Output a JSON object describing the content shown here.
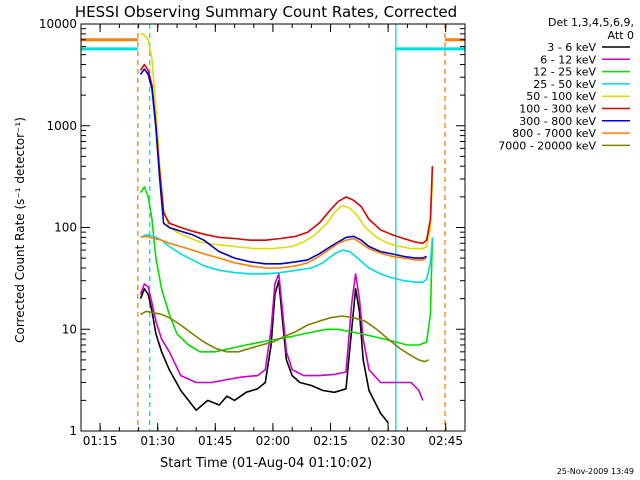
{
  "chart_data": {
    "type": "line",
    "title": "HESSI Observing Summary Count Rates, Corrected",
    "xlabel": "Start Time (01-Aug-04 01:10:02)",
    "ylabel": "Corrected Count Rate (s⁻¹ detector⁻¹)",
    "y_scale": "log",
    "ylim": [
      1,
      10000
    ],
    "xlim_minutes": [
      0,
      100
    ],
    "x_ticks": [
      {
        "label": "01:15",
        "minutes": 4.97
      },
      {
        "label": "01:30",
        "minutes": 19.97
      },
      {
        "label": "01:45",
        "minutes": 34.97
      },
      {
        "label": "02:00",
        "minutes": 49.97
      },
      {
        "label": "02:15",
        "minutes": 64.97
      },
      {
        "label": "02:30",
        "minutes": 79.97
      },
      {
        "label": "02:45",
        "minutes": 94.97
      }
    ],
    "y_ticks": [
      {
        "label": "1",
        "value": 1
      },
      {
        "label": "10",
        "value": 10
      },
      {
        "label": "100",
        "value": 100
      },
      {
        "label": "1000",
        "value": 1000
      },
      {
        "label": "10000",
        "value": 10000
      }
    ],
    "legend_header": [
      "Det 1,3,4,5,6,9,",
      "Att 0"
    ],
    "legend_position": "right",
    "timestamp": "25-Nov-2009 13:49",
    "series": [
      {
        "name": "3 - 6 keV",
        "color": "#000000",
        "points": [
          [
            15.5,
            20
          ],
          [
            16.5,
            25
          ],
          [
            17.5,
            22
          ],
          [
            18.5,
            15
          ],
          [
            19.5,
            9
          ],
          [
            21,
            6
          ],
          [
            23,
            4
          ],
          [
            26,
            2.5
          ],
          [
            28,
            2
          ],
          [
            30,
            1.6
          ],
          [
            33,
            2
          ],
          [
            36,
            1.8
          ],
          [
            38,
            2.2
          ],
          [
            40,
            2
          ],
          [
            43,
            2.4
          ],
          [
            46,
            2.6
          ],
          [
            48,
            3
          ],
          [
            49.5,
            7
          ],
          [
            50.5,
            22
          ],
          [
            51.5,
            30
          ],
          [
            52.5,
            12
          ],
          [
            53.5,
            5
          ],
          [
            55,
            3.5
          ],
          [
            57,
            3
          ],
          [
            60,
            2.8
          ],
          [
            63,
            2.5
          ],
          [
            66,
            2.4
          ],
          [
            69,
            2.6
          ],
          [
            70.5,
            10
          ],
          [
            71.5,
            25
          ],
          [
            72.5,
            15
          ],
          [
            73.5,
            5
          ],
          [
            75,
            2.5
          ],
          [
            78,
            1.5
          ],
          [
            80,
            1.2
          ]
        ]
      },
      {
        "name": "6 - 12 keV",
        "color": "#cc00cc",
        "points": [
          [
            15.5,
            22
          ],
          [
            16.5,
            28
          ],
          [
            17.5,
            26
          ],
          [
            18.5,
            18
          ],
          [
            19.5,
            12
          ],
          [
            21,
            8
          ],
          [
            23,
            6
          ],
          [
            26,
            3.5
          ],
          [
            30,
            3
          ],
          [
            34,
            3
          ],
          [
            38,
            3.2
          ],
          [
            42,
            3.4
          ],
          [
            46,
            3.5
          ],
          [
            48,
            4
          ],
          [
            49.5,
            10
          ],
          [
            50.5,
            28
          ],
          [
            51.5,
            35
          ],
          [
            52.5,
            15
          ],
          [
            53.5,
            6
          ],
          [
            55,
            4
          ],
          [
            58,
            3.5
          ],
          [
            62,
            3.5
          ],
          [
            66,
            3.6
          ],
          [
            69,
            3.8
          ],
          [
            70.5,
            18
          ],
          [
            71.5,
            35
          ],
          [
            72.5,
            20
          ],
          [
            73.5,
            8
          ],
          [
            75,
            4
          ],
          [
            78,
            3
          ],
          [
            82,
            3
          ],
          [
            86,
            3
          ],
          [
            88,
            2.5
          ],
          [
            89,
            2
          ]
        ]
      },
      {
        "name": "12 - 25 keV",
        "color": "#00dd00",
        "points": [
          [
            15.5,
            220
          ],
          [
            16.5,
            250
          ],
          [
            17.5,
            200
          ],
          [
            18.5,
            120
          ],
          [
            19.5,
            50
          ],
          [
            21,
            25
          ],
          [
            23,
            14
          ],
          [
            25,
            9
          ],
          [
            28,
            7
          ],
          [
            31,
            6
          ],
          [
            35,
            6
          ],
          [
            39,
            6.5
          ],
          [
            43,
            7
          ],
          [
            47,
            7.5
          ],
          [
            51,
            8
          ],
          [
            55,
            8.5
          ],
          [
            58,
            9
          ],
          [
            61,
            9.5
          ],
          [
            64,
            10
          ],
          [
            67,
            10
          ],
          [
            70,
            9.5
          ],
          [
            73,
            9
          ],
          [
            76,
            8.5
          ],
          [
            79,
            8
          ],
          [
            82,
            7.5
          ],
          [
            85,
            7
          ],
          [
            88,
            7
          ],
          [
            90,
            7.5
          ],
          [
            91,
            14
          ],
          [
            91.5,
            80
          ]
        ]
      },
      {
        "name": "25 - 50 keV",
        "color": "#00dddd",
        "points": [
          [
            15.5,
            80
          ],
          [
            17,
            85
          ],
          [
            19,
            82
          ],
          [
            21,
            75
          ],
          [
            23,
            65
          ],
          [
            26,
            55
          ],
          [
            29,
            48
          ],
          [
            32,
            42
          ],
          [
            36,
            38
          ],
          [
            40,
            36
          ],
          [
            44,
            35
          ],
          [
            48,
            35
          ],
          [
            52,
            36
          ],
          [
            56,
            38
          ],
          [
            60,
            40
          ],
          [
            63,
            45
          ],
          [
            66,
            55
          ],
          [
            68,
            60
          ],
          [
            70,
            58
          ],
          [
            72,
            50
          ],
          [
            75,
            40
          ],
          [
            78,
            35
          ],
          [
            81,
            32
          ],
          [
            84,
            30
          ],
          [
            87,
            29
          ],
          [
            89,
            29
          ],
          [
            90,
            31
          ],
          [
            91,
            45
          ],
          [
            91.5,
            80
          ]
        ]
      },
      {
        "name": "50 - 100 keV",
        "color": "#dddd00",
        "points": [
          [
            15.5,
            8000
          ],
          [
            16.5,
            7800
          ],
          [
            17.5,
            7000
          ],
          [
            18.5,
            4500
          ],
          [
            19.5,
            1500
          ],
          [
            20.5,
            400
          ],
          [
            21.5,
            150
          ],
          [
            23,
            100
          ],
          [
            25,
            90
          ],
          [
            28,
            80
          ],
          [
            31,
            72
          ],
          [
            35,
            68
          ],
          [
            40,
            65
          ],
          [
            45,
            62
          ],
          [
            50,
            62
          ],
          [
            55,
            65
          ],
          [
            58,
            72
          ],
          [
            61,
            85
          ],
          [
            64,
            110
          ],
          [
            66,
            140
          ],
          [
            68,
            165
          ],
          [
            70,
            155
          ],
          [
            72,
            130
          ],
          [
            74,
            100
          ],
          [
            77,
            80
          ],
          [
            80,
            70
          ],
          [
            83,
            65
          ],
          [
            86,
            62
          ],
          [
            89,
            62
          ],
          [
            90,
            65
          ],
          [
            91,
            100
          ],
          [
            91.5,
            300
          ]
        ]
      },
      {
        "name": "100 - 300 keV",
        "color": "#dd0000",
        "points": [
          [
            15.5,
            3500
          ],
          [
            16.5,
            4000
          ],
          [
            17.5,
            3500
          ],
          [
            18.5,
            2500
          ],
          [
            19.5,
            1000
          ],
          [
            20.5,
            350
          ],
          [
            21.5,
            140
          ],
          [
            23,
            110
          ],
          [
            26,
            100
          ],
          [
            29,
            92
          ],
          [
            32,
            86
          ],
          [
            36,
            80
          ],
          [
            40,
            78
          ],
          [
            44,
            75
          ],
          [
            48,
            75
          ],
          [
            52,
            78
          ],
          [
            56,
            82
          ],
          [
            59,
            90
          ],
          [
            62,
            110
          ],
          [
            65,
            150
          ],
          [
            67,
            180
          ],
          [
            69,
            200
          ],
          [
            71,
            185
          ],
          [
            73,
            160
          ],
          [
            75,
            120
          ],
          [
            78,
            95
          ],
          [
            81,
            85
          ],
          [
            84,
            78
          ],
          [
            87,
            72
          ],
          [
            89,
            70
          ],
          [
            90,
            75
          ],
          [
            91,
            120
          ],
          [
            91.5,
            400
          ]
        ]
      },
      {
        "name": "300 - 800 keV",
        "color": "#0000cc",
        "points": [
          [
            15.5,
            3200
          ],
          [
            16.5,
            3600
          ],
          [
            17.5,
            3200
          ],
          [
            18.5,
            2300
          ],
          [
            19.5,
            950
          ],
          [
            20.5,
            300
          ],
          [
            21.5,
            110
          ],
          [
            23,
            100
          ],
          [
            26,
            92
          ],
          [
            29,
            85
          ],
          [
            32,
            75
          ],
          [
            36,
            58
          ],
          [
            40,
            50
          ],
          [
            44,
            46
          ],
          [
            48,
            44
          ],
          [
            52,
            44
          ],
          [
            56,
            46
          ],
          [
            59,
            48
          ],
          [
            62,
            55
          ],
          [
            65,
            65
          ],
          [
            67,
            72
          ],
          [
            69,
            80
          ],
          [
            71,
            82
          ],
          [
            73,
            75
          ],
          [
            75,
            65
          ],
          [
            78,
            58
          ],
          [
            81,
            55
          ],
          [
            84,
            52
          ],
          [
            87,
            50
          ],
          [
            89,
            50
          ],
          [
            90,
            52
          ]
        ]
      },
      {
        "name": "800 - 7000 keV",
        "color": "#ff8000",
        "points": [
          [
            15.5,
            80
          ],
          [
            17,
            82
          ],
          [
            19,
            78
          ],
          [
            21,
            75
          ],
          [
            23,
            70
          ],
          [
            26,
            65
          ],
          [
            29,
            60
          ],
          [
            32,
            55
          ],
          [
            36,
            50
          ],
          [
            40,
            45
          ],
          [
            44,
            42
          ],
          [
            48,
            40
          ],
          [
            52,
            40
          ],
          [
            56,
            42
          ],
          [
            59,
            45
          ],
          [
            62,
            52
          ],
          [
            65,
            62
          ],
          [
            67,
            70
          ],
          [
            69,
            75
          ],
          [
            71,
            78
          ],
          [
            73,
            70
          ],
          [
            75,
            62
          ],
          [
            78,
            56
          ],
          [
            81,
            52
          ],
          [
            84,
            50
          ],
          [
            87,
            48
          ],
          [
            89,
            48
          ],
          [
            90,
            50
          ]
        ]
      },
      {
        "name": "7000 - 20000 keV",
        "color": "#808000",
        "points": [
          [
            15.5,
            14
          ],
          [
            17,
            15
          ],
          [
            19,
            14.5
          ],
          [
            21,
            14
          ],
          [
            23,
            13
          ],
          [
            26,
            11
          ],
          [
            29,
            9
          ],
          [
            32,
            7.5
          ],
          [
            35,
            6.5
          ],
          [
            38,
            6
          ],
          [
            41,
            6
          ],
          [
            44,
            6.5
          ],
          [
            47,
            7
          ],
          [
            50,
            7.5
          ],
          [
            53,
            8.5
          ],
          [
            56,
            9.5
          ],
          [
            59,
            11
          ],
          [
            62,
            12
          ],
          [
            65,
            13
          ],
          [
            68,
            13.5
          ],
          [
            71,
            13
          ],
          [
            74,
            12
          ],
          [
            77,
            10
          ],
          [
            80,
            8
          ],
          [
            83,
            6.5
          ],
          [
            86,
            5.5
          ],
          [
            88,
            5
          ],
          [
            89.5,
            4.8
          ],
          [
            90.5,
            5
          ]
        ]
      }
    ],
    "step_indicators": [
      {
        "color": "#ff8000",
        "segments": [
          [
            0,
            14.8
          ],
          [
            94.8,
            100
          ]
        ],
        "value": 7000
      },
      {
        "color": "#00dddd",
        "segments": [
          [
            0,
            14.8
          ],
          [
            82,
            100
          ]
        ],
        "value": 5700
      }
    ],
    "vertical_markers": [
      {
        "color": "#ff8000",
        "minutes": 14.8,
        "style": "dashed"
      },
      {
        "color": "#00dddd",
        "minutes": 17.9,
        "style": "dashed"
      },
      {
        "color": "#00dddd",
        "minutes": 82.0,
        "style": "solid"
      },
      {
        "color": "#ff8000",
        "minutes": 94.8,
        "style": "dashed"
      }
    ]
  }
}
